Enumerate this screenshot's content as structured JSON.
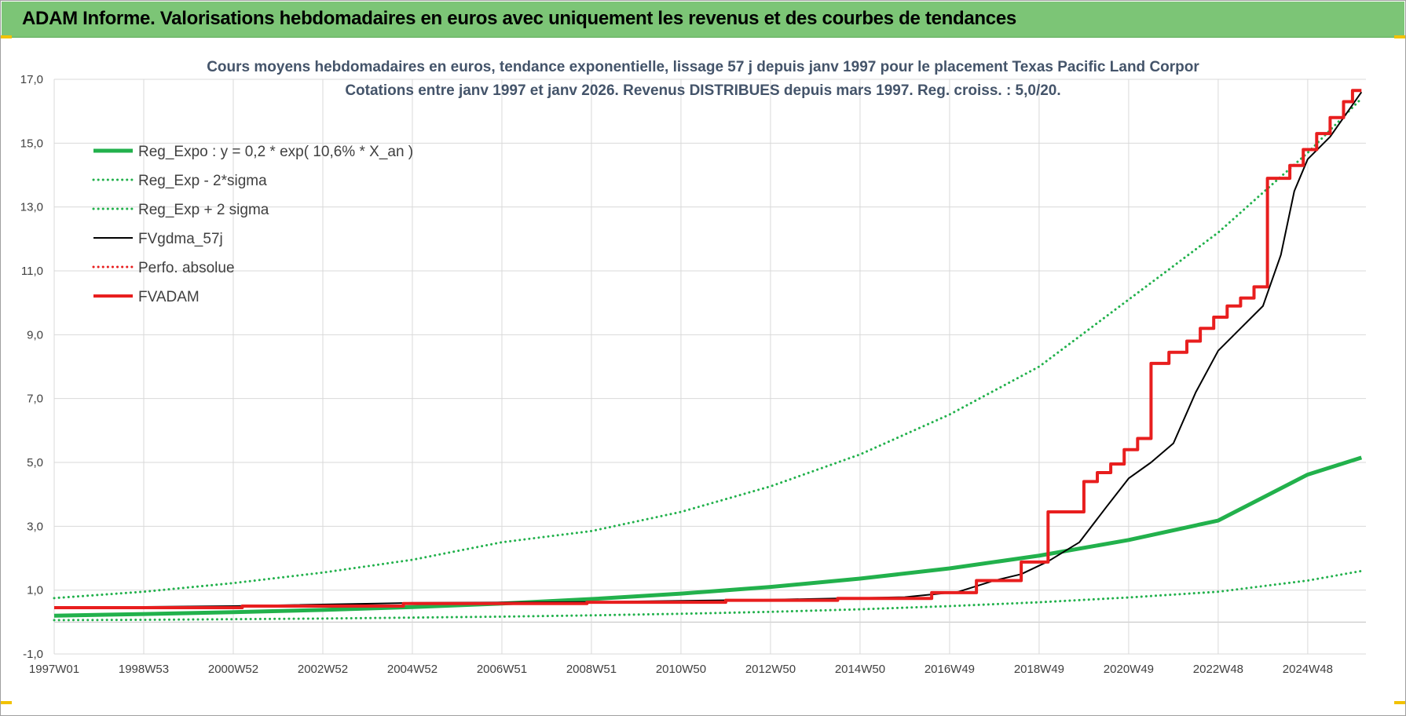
{
  "banner": {
    "title": "ADAM Informe. Valorisations hebdomadaires en euros avec uniquement les revenus et des courbes de tendances"
  },
  "chart_data": {
    "type": "line",
    "title": "Cours moyens hebdomadaires en euros, tendance exponentielle, lissage 57 j depuis janv 1997  pour le placement Texas Pacific Land Corpor",
    "subtitle": "Cotations entre janv 1997 et janv 2026. Revenus DISTRIBUES depuis mars 1997.  Reg. croiss. : 5,0/20.",
    "xlabel": "",
    "ylabel": "",
    "ylim": [
      -1,
      17
    ],
    "xlim": [
      1997.0,
      2026.3
    ],
    "yticks": [
      -1,
      1,
      3,
      5,
      7,
      9,
      11,
      13,
      15,
      17
    ],
    "ytick_labels": [
      "-1,0",
      "1,0",
      "3,0",
      "5,0",
      "7,0",
      "9,0",
      "11,0",
      "13,0",
      "15,0",
      "17,0"
    ],
    "xticks": [
      1997.0,
      1999.0,
      2001.0,
      2003.0,
      2005.0,
      2007.0,
      2009.0,
      2011.0,
      2013.0,
      2015.0,
      2017.0,
      2019.0,
      2021.0,
      2023.0,
      2025.0
    ],
    "xtick_labels": [
      "1997W01",
      "1998W53",
      "2000W52",
      "2002W52",
      "2004W52",
      "2006W51",
      "2008W51",
      "2010W50",
      "2012W50",
      "2014W50",
      "2016W49",
      "2018W49",
      "2020W49",
      "2022W48",
      "2024W48"
    ],
    "grid": true,
    "legend_position": "top-left",
    "series": [
      {
        "name": "Reg_Expo : y = 0,2 * exp( 10,6% *  X_an )",
        "color": "#22b14c",
        "style": "solid",
        "width": 5,
        "x": [
          1997,
          1999,
          2001,
          2003,
          2005,
          2007,
          2009,
          2011,
          2013,
          2015,
          2017,
          2019,
          2021,
          2023,
          2025,
          2026.2
        ],
        "values": [
          0.2,
          0.25,
          0.31,
          0.38,
          0.47,
          0.58,
          0.72,
          0.89,
          1.1,
          1.36,
          1.68,
          2.08,
          2.57,
          3.18,
          4.62,
          5.15
        ]
      },
      {
        "name": "Reg_Exp - 2*sigma",
        "color": "#22b14c",
        "style": "dotted",
        "width": 3,
        "x": [
          1997,
          1999,
          2001,
          2003,
          2005,
          2007,
          2009,
          2011,
          2013,
          2015,
          2017,
          2019,
          2021,
          2023,
          2025,
          2026.2
        ],
        "values": [
          0.06,
          0.07,
          0.09,
          0.11,
          0.14,
          0.17,
          0.21,
          0.26,
          0.32,
          0.4,
          0.5,
          0.62,
          0.77,
          0.95,
          1.3,
          1.6
        ]
      },
      {
        "name": "Reg_Exp + 2 sigma",
        "color": "#22b14c",
        "style": "dotted",
        "width": 3,
        "x": [
          1997,
          1999,
          2001,
          2003,
          2005,
          2007,
          2009,
          2011,
          2013,
          2015,
          2017,
          2019,
          2021,
          2023,
          2025,
          2026.2
        ],
        "values": [
          0.75,
          0.95,
          1.22,
          1.55,
          1.95,
          2.5,
          2.85,
          3.45,
          4.25,
          5.25,
          6.5,
          8.0,
          10.1,
          12.2,
          14.7,
          16.4
        ]
      },
      {
        "name": "FVgdma_57j",
        "color": "#000000",
        "style": "solid",
        "width": 2,
        "x": [
          1997,
          2001,
          2005,
          2009,
          2013,
          2016,
          2017.2,
          2018.0,
          2018.6,
          2019.2,
          2019.9,
          2020.5,
          2021.0,
          2021.5,
          2022.0,
          2022.5,
          2023.0,
          2023.5,
          2024.0,
          2024.4,
          2024.7,
          2025.0,
          2025.5,
          2026.0,
          2026.2
        ],
        "values": [
          0.45,
          0.5,
          0.6,
          0.63,
          0.7,
          0.78,
          0.95,
          1.3,
          1.5,
          1.9,
          2.5,
          3.6,
          4.5,
          5.0,
          5.6,
          7.2,
          8.5,
          9.2,
          9.9,
          11.5,
          13.5,
          14.5,
          15.2,
          16.2,
          16.6
        ]
      },
      {
        "name": "Perfo. absolue",
        "color": "#e81e1e",
        "style": "dotted",
        "width": 2,
        "x": [],
        "values": []
      },
      {
        "name": "FVADAM",
        "color": "#e81e1e",
        "style": "step",
        "width": 4,
        "x": [
          1997.0,
          2001.2,
          2004.8,
          2008.9,
          2012.0,
          2014.5,
          2016.6,
          2017.6,
          2018.6,
          2019.2,
          2020.0,
          2020.3,
          2020.6,
          2020.9,
          2021.2,
          2021.5,
          2021.9,
          2022.3,
          2022.6,
          2022.9,
          2023.2,
          2023.5,
          2023.8,
          2024.1,
          2024.6,
          2024.9,
          2025.2,
          2025.5,
          2025.8,
          2026.0
        ],
        "values": [
          0.45,
          0.5,
          0.58,
          0.62,
          0.68,
          0.74,
          0.92,
          1.3,
          1.88,
          3.45,
          4.4,
          4.68,
          4.95,
          5.4,
          5.75,
          8.1,
          8.45,
          8.8,
          9.2,
          9.55,
          9.9,
          10.15,
          10.5,
          13.9,
          14.3,
          14.8,
          15.3,
          15.8,
          16.3,
          16.65
        ]
      }
    ]
  }
}
